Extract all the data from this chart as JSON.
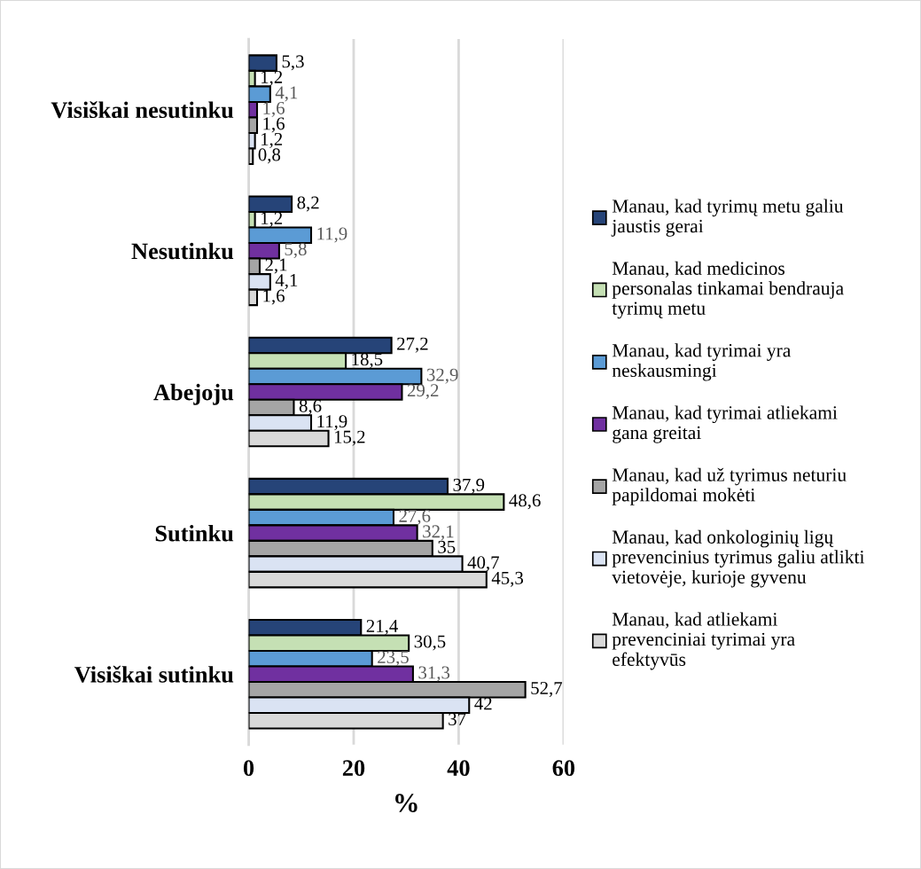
{
  "chart_data": {
    "type": "bar",
    "orientation": "horizontal",
    "xlabel": "%",
    "categories": [
      "Visiškai nesutinku",
      "Nesutinku",
      "Abejoju",
      "Sutinku",
      "Visiškai sutinku"
    ],
    "xlim": [
      0,
      60
    ],
    "xticks": [
      0,
      20,
      40,
      60
    ],
    "grid": "x",
    "legend": "right",
    "series": [
      {
        "name": "Manau, kad tyrimų metu galiu\njaustis gerai",
        "color": "#264478",
        "values": [
          5.3,
          8.2,
          27.2,
          37.9,
          21.4
        ],
        "value_labels": [
          "5,3",
          "8,2",
          "27,2",
          "37,9",
          "21,4"
        ]
      },
      {
        "name": "Manau, kad medicinos\npersonalas tinkamai bendrauja\ntyrimų metu",
        "color": "#c5e0b4",
        "values": [
          1.2,
          1.2,
          18.5,
          48.6,
          30.5
        ],
        "value_labels": [
          "1,2",
          "1,2",
          "18,5",
          "48,6",
          "30,5"
        ]
      },
      {
        "name": "Manau, kad tyrimai yra\nneskausmingi",
        "color": "#5b9bd5",
        "values": [
          4.1,
          11.9,
          32.9,
          27.6,
          23.5
        ],
        "value_labels": [
          "4,1",
          "11,9",
          "32,9",
          "27,6",
          "23,5"
        ]
      },
      {
        "name": "Manau, kad tyrimai atliekami\ngana greitai",
        "color": "#7030a0",
        "values": [
          1.6,
          5.8,
          29.2,
          32.1,
          31.3
        ],
        "value_labels": [
          "1,6",
          "5,8",
          "29,2",
          "32,1",
          "31,3"
        ]
      },
      {
        "name": "Manau, kad už tyrimus neturiu\npapildomai mokėti",
        "color": "#a5a5a5",
        "values": [
          1.6,
          2.1,
          8.6,
          35,
          52.7
        ],
        "value_labels": [
          "1,6",
          "2,1",
          "8,6",
          "35",
          "52,7"
        ]
      },
      {
        "name": "Manau, kad onkologinių ligų\nprevencinius tyrimus galiu atlikti\nvietovėje, kurioje gyvenu",
        "color": "#dae3f3",
        "values": [
          1.2,
          4.1,
          11.9,
          40.7,
          42
        ],
        "value_labels": [
          "1,2",
          "4,1",
          "11,9",
          "40,7",
          "42"
        ]
      },
      {
        "name": "Manau, kad atliekami\nprevenciniai tyrimai yra\nefektyvūs",
        "color": "#d9d9d9",
        "values": [
          0.8,
          1.6,
          15.2,
          45.3,
          37
        ],
        "value_labels": [
          "0,8",
          "1,6",
          "15,2",
          "45,3",
          "37"
        ]
      }
    ]
  }
}
